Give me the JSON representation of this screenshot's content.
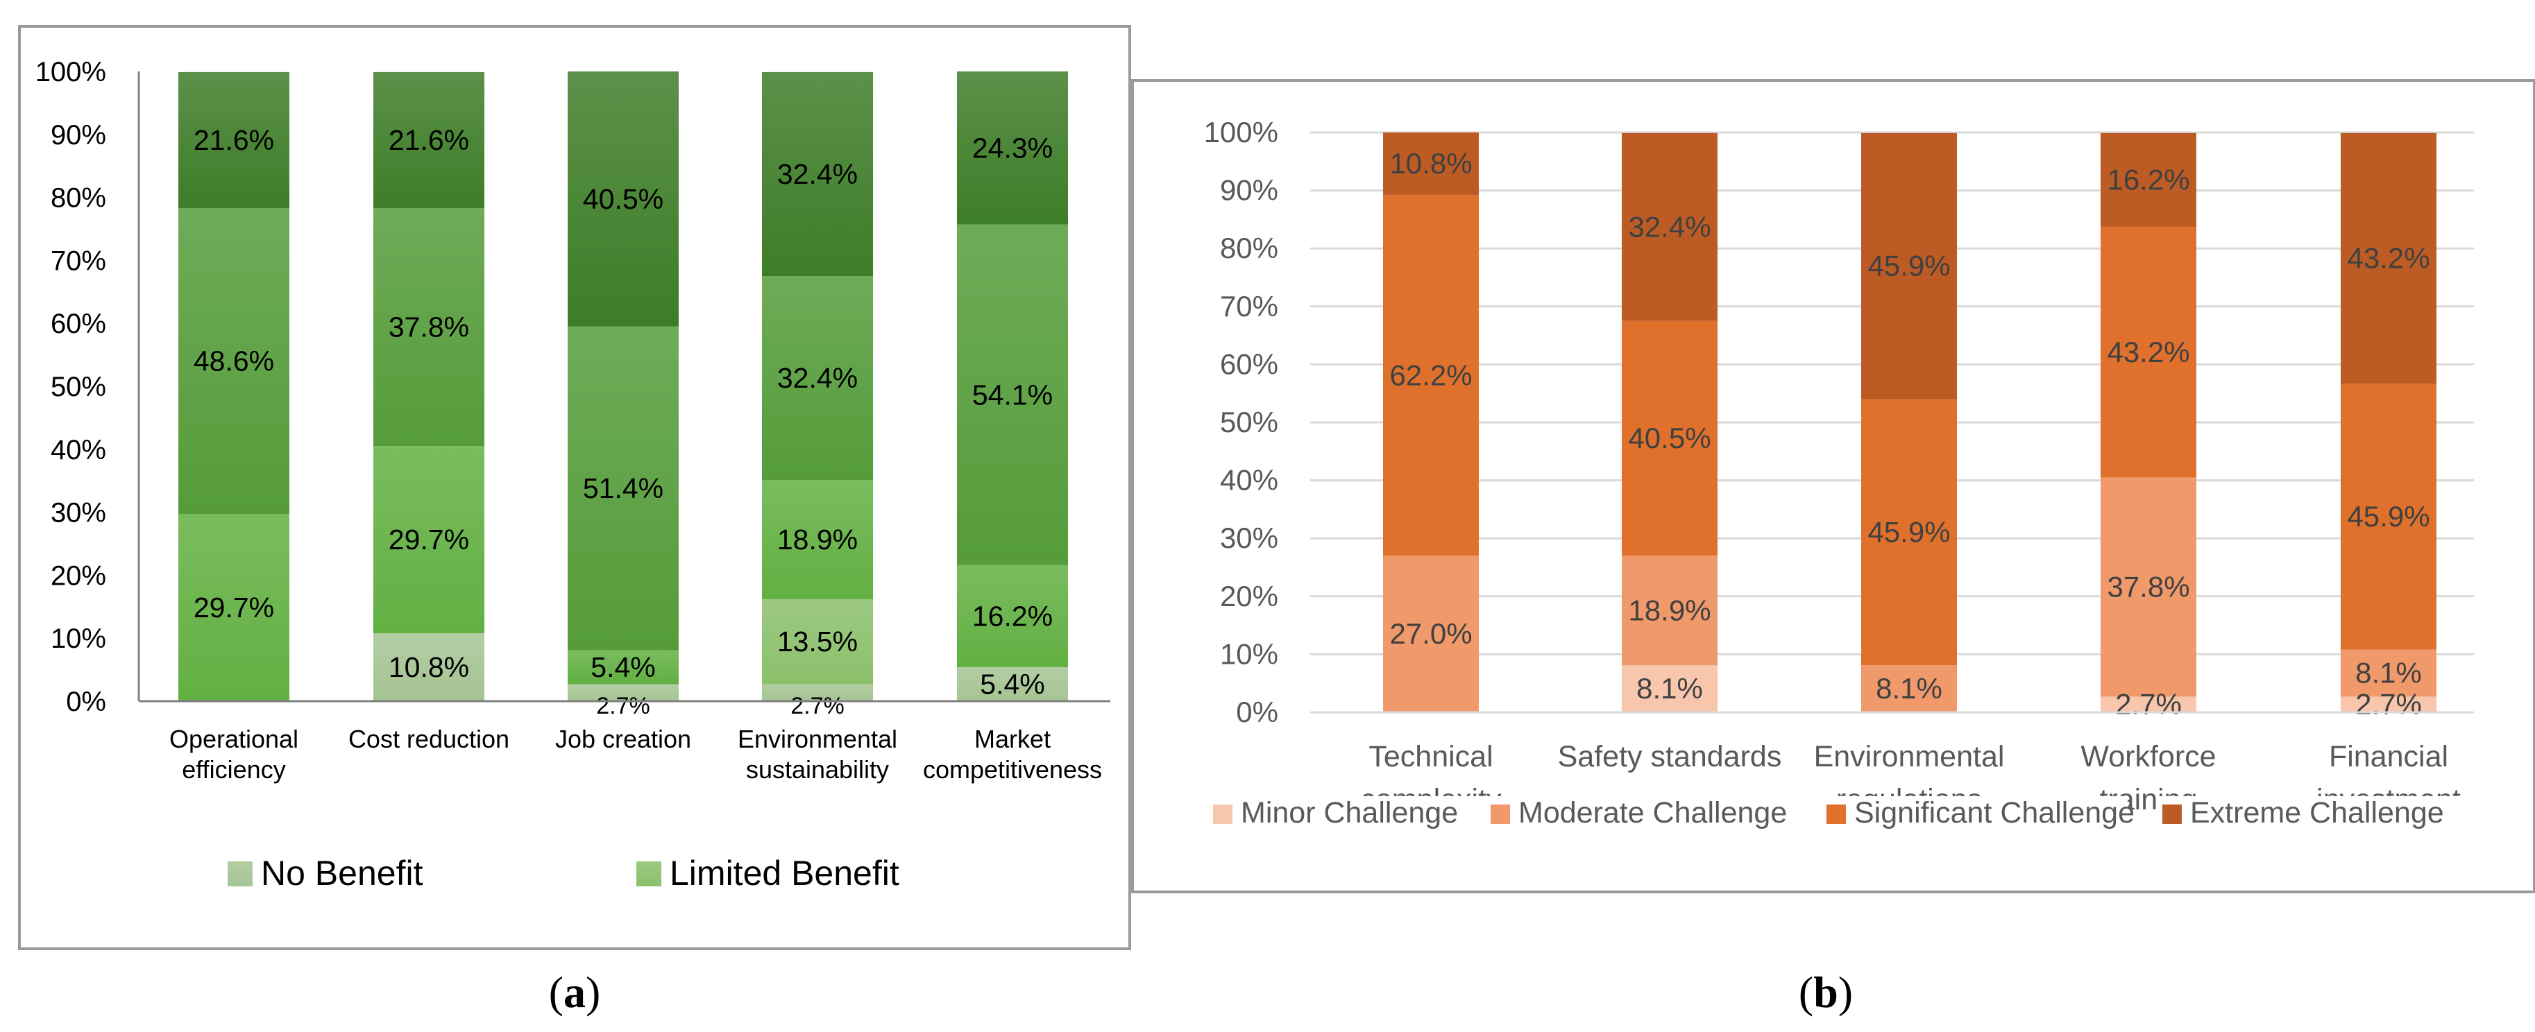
{
  "panels": [
    {
      "caption_open": "(",
      "caption_letter": "a",
      "caption_close": ")",
      "chart_data": {
        "type": "bar",
        "stacked": true,
        "normalized": true,
        "categories": [
          [
            "Operational",
            "efficiency"
          ],
          [
            "Cost reduction"
          ],
          [
            "Job creation"
          ],
          [
            "Environmental",
            "sustainability"
          ],
          [
            "Market",
            "competitiveness"
          ]
        ],
        "ylim": [
          0,
          100
        ],
        "yticks": [
          "0%",
          "10%",
          "20%",
          "30%",
          "40%",
          "50%",
          "60%",
          "70%",
          "80%",
          "90%",
          "100%"
        ],
        "grid": false,
        "legend_placement": "bottom",
        "series": [
          {
            "name": "No Benefit",
            "color": "#a5c493",
            "values": [
              0,
              10.8,
              2.7,
              2.7,
              5.4
            ]
          },
          {
            "name": "Limited Benefit",
            "color": "#8bc06b",
            "values": [
              0,
              0,
              0,
              13.5,
              0
            ]
          },
          {
            "name": "",
            "color": "#62b042",
            "values": [
              29.7,
              29.7,
              5.4,
              18.9,
              16.2
            ]
          },
          {
            "name": "",
            "color": "#559c3a",
            "values": [
              48.6,
              37.8,
              51.4,
              32.4,
              54.1
            ]
          },
          {
            "name": "",
            "color": "#3e7d28",
            "values": [
              21.6,
              21.6,
              40.5,
              32.4,
              24.3
            ]
          }
        ],
        "data_labels": [
          [
            "",
            "29.7%",
            "48.6%",
            "21.6%"
          ],
          [
            "10.8%",
            "29.7%",
            "37.8%",
            "21.6%"
          ],
          [
            "2.7%",
            "5.4%",
            "51.4%",
            "40.5%"
          ],
          [
            "2.7%",
            "13.5%",
            "18.9%",
            "32.4%",
            "32.4%"
          ],
          [
            "5.4%",
            "16.2%",
            "54.1%",
            "24.3%"
          ]
        ],
        "legend": [
          "No Benefit",
          "Limited Benefit"
        ]
      }
    },
    {
      "caption_open": "(",
      "caption_letter": "b",
      "caption_close": ")",
      "chart_data": {
        "type": "bar",
        "stacked": true,
        "normalized": true,
        "categories": [
          [
            "Technical",
            "complexity"
          ],
          [
            "Safety standards"
          ],
          [
            "Environmental",
            "regulations"
          ],
          [
            "Workforce",
            "training"
          ],
          [
            "Financial",
            "investment"
          ]
        ],
        "ylim": [
          0,
          100
        ],
        "yticks": [
          "0%",
          "10%",
          "20%",
          "30%",
          "40%",
          "50%",
          "60%",
          "70%",
          "80%",
          "90%",
          "100%"
        ],
        "grid": true,
        "legend_placement": "bottom",
        "series": [
          {
            "name": "Minor Challenge",
            "color": "#f7c6ad",
            "values": [
              0,
              8.1,
              0,
              2.7,
              2.7
            ]
          },
          {
            "name": "Moderate Challenge",
            "color": "#f0996b",
            "values": [
              27.0,
              18.9,
              8.1,
              37.8,
              8.1
            ]
          },
          {
            "name": "Significant Challenge",
            "color": "#e0712c",
            "values": [
              62.2,
              40.5,
              45.9,
              43.2,
              45.9
            ]
          },
          {
            "name": "Extreme Challenge",
            "color": "#bd5b25",
            "values": [
              10.8,
              32.4,
              45.9,
              16.2,
              43.2
            ]
          }
        ],
        "data_labels": [
          [
            "",
            "27.0%",
            "62.2%",
            "10.8%"
          ],
          [
            "8.1%",
            "18.9%",
            "40.5%",
            "32.4%"
          ],
          [
            "",
            "8.1%",
            "45.9%",
            "45.9%"
          ],
          [
            "2.7%",
            "37.8%",
            "43.2%",
            "16.2%"
          ],
          [
            "2.7%",
            "8.1%",
            "45.9%",
            "43.2%"
          ]
        ],
        "legend": [
          "Minor Challenge",
          "Moderate Challenge",
          "Significant Challenge",
          "Extreme Challenge"
        ]
      }
    }
  ]
}
